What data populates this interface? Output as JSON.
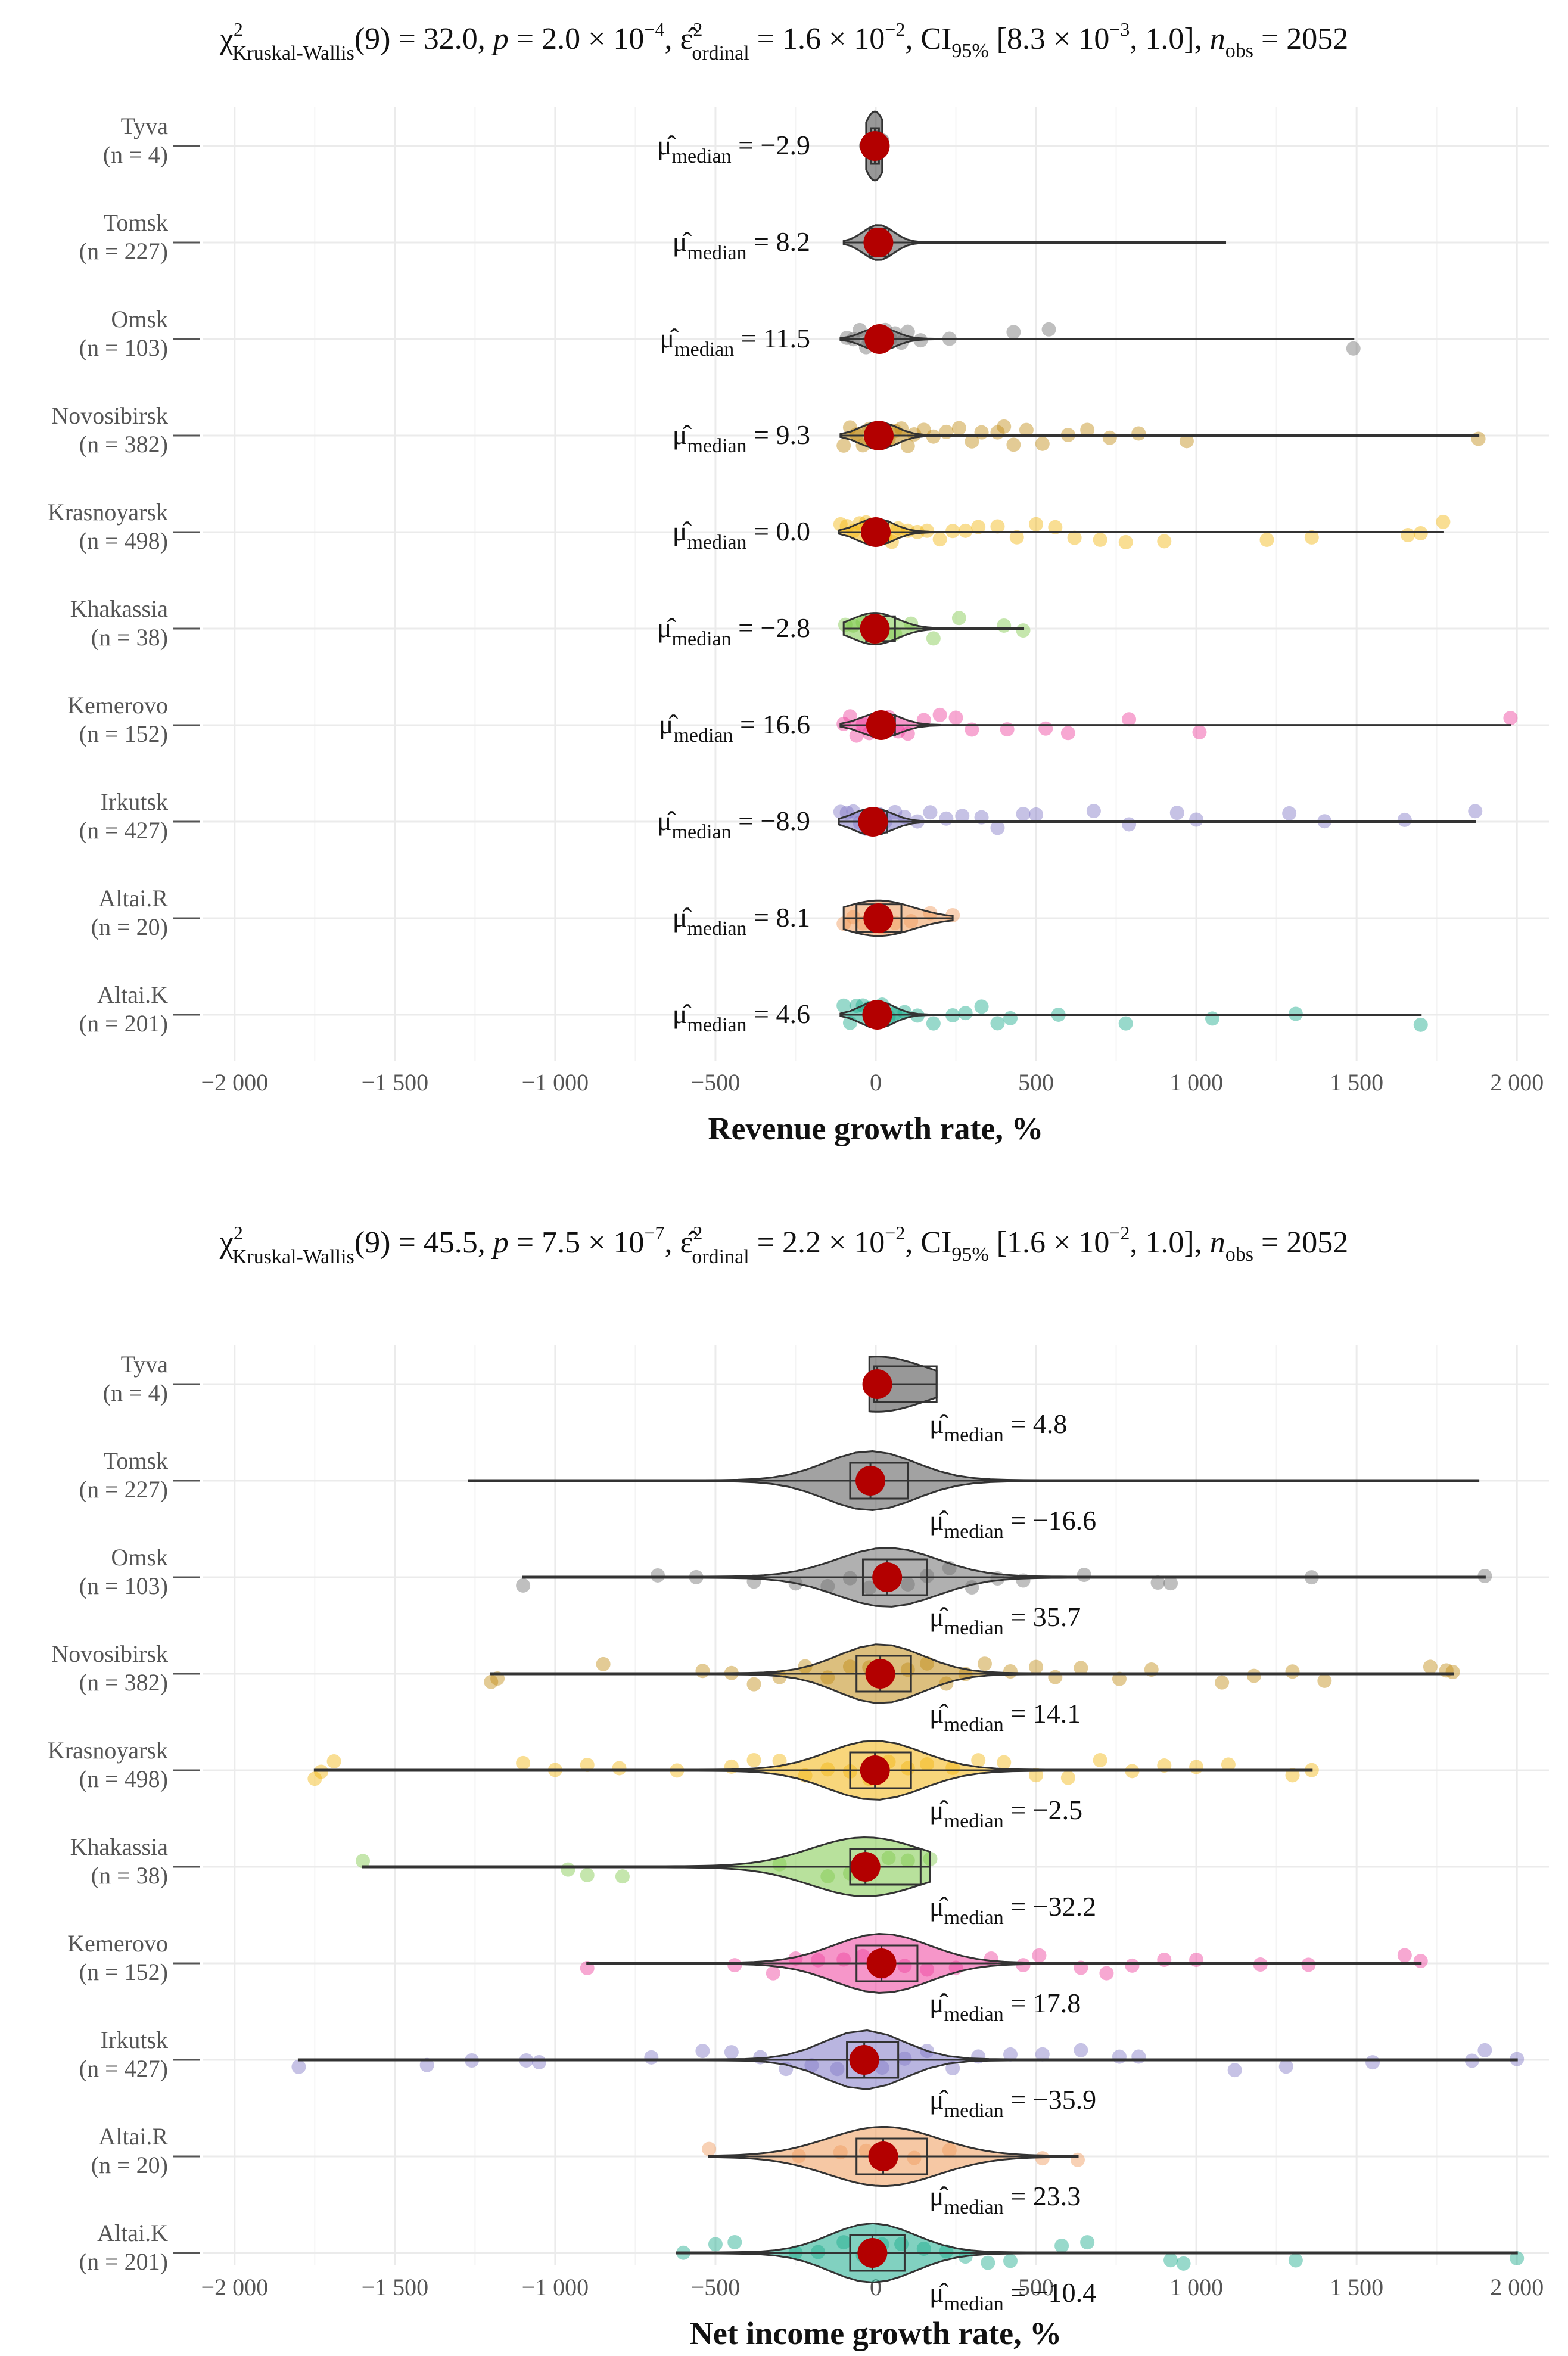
{
  "colors": {
    "grid": "#ebebeb",
    "median_point": "#b30000",
    "violin_stroke": "#333333",
    "Tyva": "#444444",
    "Tomsk": "#555555",
    "Omsk": "#707070",
    "Novosibirsk": "#c08b14",
    "Krasnoyarsk": "#f2b50f",
    "Khakassia": "#7ec84a",
    "Kemerovo": "#ee3f9c",
    "Irkutsk": "#8078c6",
    "Altai.R": "#ef9a5a",
    "Altai.K": "#1aab8c"
  },
  "chart_data": [
    {
      "type": "violin-box-scatter",
      "title": {
        "stat": "χ",
        "stat_sup": "2",
        "stat_sub": "Kruskal-Wallis",
        "df_text": "(9) = 32.0, ",
        "p_symbol": "p",
        "p_text": " = 2.0 × 10",
        "p_exp": "−4",
        "sep1": ", ",
        "eps_symbol": "ε̂",
        "eps_sup": "2",
        "eps_sub": "ordinal",
        "eps_text": " = 1.6 × 10",
        "eps_exp": "−2",
        "ci_text": ", CI",
        "ci_sub": "95%",
        "ci_lo": " [8.3 × 10",
        "ci_lo_exp": "−3",
        "ci_hi": ", 1.0], ",
        "n_symbol": "n",
        "n_sub": "obs",
        "n_text": " = 2052"
      },
      "xlabel": "Revenue growth rate, %",
      "xlim": [
        -2100,
        2100
      ],
      "xticks": [
        -2000,
        -1500,
        -1000,
        -500,
        0,
        500,
        1000,
        1500,
        2000
      ],
      "xtick_labels": [
        "−2 000",
        "−1 500",
        "−1 000",
        "−500",
        "0",
        "500",
        "1 000",
        "1 500",
        "2 000"
      ],
      "median_label_prefix": "μ̂",
      "median_label_sub": "median",
      "median_label_position": "left",
      "groups": [
        {
          "name": "Tyva",
          "n_label": "(n = 4)",
          "median": -2.9,
          "median_label": " = −2.9",
          "q1": -15,
          "q3": 10,
          "min": -30,
          "max": 20,
          "violin_width": 0.35,
          "points": [
            -30,
            -10,
            5,
            20
          ]
        },
        {
          "name": "Tomsk",
          "n_label": "(n = 227)",
          "median": 8.2,
          "median_label": " = 8.2",
          "q1": -20,
          "q3": 40,
          "min": -100,
          "max": 1090,
          "violin_width": 0.18,
          "points": []
        },
        {
          "name": "Omsk",
          "n_label": "(n = 103)",
          "median": 11.5,
          "median_label": " = 11.5",
          "q1": -20,
          "q3": 45,
          "min": -110,
          "max": 1490,
          "violin_width": 0.12,
          "points": [
            -90,
            -70,
            -50,
            -30,
            -20,
            -10,
            0,
            10,
            20,
            30,
            45,
            60,
            80,
            100,
            140,
            230,
            430,
            540,
            1490
          ]
        },
        {
          "name": "Novosibirsk",
          "n_label": "(n = 382)",
          "median": 9.3,
          "median_label": " = 9.3",
          "q1": -25,
          "q3": 45,
          "min": -110,
          "max": 1880,
          "violin_width": 0.14,
          "points": [
            -100,
            -80,
            -60,
            -40,
            -20,
            0,
            20,
            40,
            60,
            80,
            100,
            120,
            150,
            180,
            220,
            260,
            300,
            330,
            380,
            400,
            430,
            470,
            520,
            600,
            660,
            730,
            820,
            970,
            1880
          ]
        },
        {
          "name": "Krasnoyarsk",
          "n_label": "(n = 498)",
          "median": 0.0,
          "median_label": " = 0.0",
          "q1": -30,
          "q3": 40,
          "min": -115,
          "max": 1770,
          "violin_width": 0.14,
          "points": [
            -110,
            -90,
            -70,
            -50,
            -30,
            -10,
            10,
            30,
            50,
            70,
            100,
            130,
            160,
            200,
            240,
            280,
            320,
            380,
            440,
            500,
            560,
            620,
            700,
            780,
            900,
            1220,
            1360,
            1660,
            1700,
            1770
          ]
        },
        {
          "name": "Khakassia",
          "n_label": "(n = 38)",
          "median": -2.8,
          "median_label": " = −2.8",
          "q1": -30,
          "q3": 60,
          "min": -100,
          "max": 460,
          "violin_width": 0.16,
          "points": [
            -95,
            -70,
            -40,
            -10,
            20,
            60,
            110,
            180,
            260,
            400,
            460
          ]
        },
        {
          "name": "Kemerovo",
          "n_label": "(n = 152)",
          "median": 16.6,
          "median_label": " = 16.6",
          "q1": -15,
          "q3": 60,
          "min": -110,
          "max": 1980,
          "violin_width": 0.13,
          "points": [
            -100,
            -80,
            -60,
            -40,
            -20,
            0,
            20,
            40,
            70,
            100,
            150,
            200,
            250,
            300,
            410,
            530,
            600,
            790,
            1010,
            1980
          ]
        },
        {
          "name": "Irkutsk",
          "n_label": "(n = 427)",
          "median": -8.9,
          "median_label": " = −8.9",
          "q1": -40,
          "q3": 35,
          "min": -115,
          "max": 1870,
          "violin_width": 0.14,
          "points": [
            -110,
            -90,
            -70,
            -50,
            -30,
            -10,
            10,
            30,
            60,
            90,
            130,
            170,
            220,
            270,
            330,
            380,
            460,
            500,
            680,
            790,
            940,
            1000,
            1290,
            1400,
            1650,
            1870
          ]
        },
        {
          "name": "Altai.R",
          "n_label": "(n = 20)",
          "median": 8.1,
          "median_label": " = 8.1",
          "q1": -60,
          "q3": 80,
          "min": -100,
          "max": 240,
          "violin_width": 0.18,
          "points": [
            -100,
            -70,
            -40,
            -10,
            20,
            60,
            110,
            170,
            240
          ]
        },
        {
          "name": "Altai.K",
          "n_label": "(n = 201)",
          "median": 4.6,
          "median_label": " = 4.6",
          "q1": -25,
          "q3": 40,
          "min": -110,
          "max": 1700,
          "violin_width": 0.14,
          "points": [
            -100,
            -80,
            -60,
            -40,
            -20,
            0,
            20,
            40,
            60,
            90,
            130,
            180,
            240,
            280,
            330,
            380,
            420,
            570,
            780,
            1050,
            1310,
            1700
          ]
        }
      ]
    },
    {
      "type": "violin-box-scatter",
      "title": {
        "stat": "χ",
        "stat_sup": "2",
        "stat_sub": "Kruskal-Wallis",
        "df_text": "(9) = 45.5, ",
        "p_symbol": "p",
        "p_text": " = 7.5 × 10",
        "p_exp": "−7",
        "sep1": ", ",
        "eps_symbol": "ε̂",
        "eps_sup": "2",
        "eps_sub": "ordinal",
        "eps_text": " = 2.2 × 10",
        "eps_exp": "−2",
        "ci_text": ", CI",
        "ci_sub": "95%",
        "ci_lo": " [1.6 × 10",
        "ci_lo_exp": "−2",
        "ci_hi": ", 1.0], ",
        "n_symbol": "n",
        "n_sub": "obs",
        "n_text": " = 2052"
      },
      "xlabel": "Net income growth rate, %",
      "xlim": [
        -2100,
        2100
      ],
      "xticks": [
        -2000,
        -1500,
        -1000,
        -500,
        0,
        500,
        1000,
        1500,
        2000
      ],
      "xtick_labels": [
        "−2 000",
        "−1 500",
        "−1 000",
        "−500",
        "0",
        "500",
        "1 000",
        "1 500",
        "2 000"
      ],
      "median_label_prefix": "μ̂",
      "median_label_sub": "median",
      "median_label_position": "below",
      "groups": [
        {
          "name": "Tyva",
          "n_label": "(n = 4)",
          "median": 4.8,
          "median_label": " = 4.8",
          "q1": -5,
          "q3": 190,
          "min": -20,
          "max": 190,
          "violin_width": 0.28,
          "points": []
        },
        {
          "name": "Tomsk",
          "n_label": "(n = 227)",
          "median": -16.6,
          "median_label": " = −16.6",
          "q1": -80,
          "q3": 100,
          "min": -1270,
          "max": 1880,
          "violin_width": 0.3,
          "points": []
        },
        {
          "name": "Omsk",
          "n_label": "(n = 103)",
          "median": 35.7,
          "median_label": " = 35.7",
          "q1": -40,
          "q3": 160,
          "min": -1100,
          "max": 1900,
          "violin_width": 0.3,
          "points": [
            -1100,
            -680,
            -560,
            -380,
            -250,
            -150,
            -80,
            -20,
            40,
            100,
            160,
            230,
            300,
            380,
            460,
            650,
            880,
            920,
            1360,
            1900
          ]
        },
        {
          "name": "Novosibirsk",
          "n_label": "(n = 382)",
          "median": 14.1,
          "median_label": " = 14.1",
          "q1": -60,
          "q3": 110,
          "min": -1200,
          "max": 1800,
          "violin_width": 0.3,
          "points": [
            -1200,
            -1180,
            -850,
            -540,
            -450,
            -380,
            -300,
            -220,
            -150,
            -80,
            -20,
            40,
            100,
            160,
            220,
            280,
            340,
            420,
            500,
            560,
            640,
            760,
            860,
            1080,
            1180,
            1300,
            1400,
            1730,
            1780,
            1800
          ]
        },
        {
          "name": "Krasnoyarsk",
          "n_label": "(n = 498)",
          "median": -2.5,
          "median_label": " = −2.5",
          "q1": -80,
          "q3": 110,
          "min": -1750,
          "max": 1360,
          "violin_width": 0.3,
          "points": [
            -1750,
            -1730,
            -1690,
            -1100,
            -1000,
            -900,
            -800,
            -620,
            -450,
            -380,
            -300,
            -220,
            -150,
            -80,
            -20,
            40,
            100,
            160,
            240,
            320,
            400,
            500,
            600,
            700,
            800,
            900,
            1000,
            1100,
            1300,
            1360
          ]
        },
        {
          "name": "Khakassia",
          "n_label": "(n = 38)",
          "median": -32.2,
          "median_label": " = −32.2",
          "q1": -80,
          "q3": 140,
          "min": -1600,
          "max": 170,
          "violin_width": 0.3,
          "points": [
            -1600,
            -960,
            -900,
            -790,
            -300,
            -150,
            -80,
            -20,
            40,
            100,
            170
          ]
        },
        {
          "name": "Kemerovo",
          "n_label": "(n = 152)",
          "median": 17.8,
          "median_label": " = 17.8",
          "q1": -60,
          "q3": 130,
          "min": -900,
          "max": 1700,
          "violin_width": 0.3,
          "points": [
            -900,
            -440,
            -320,
            -250,
            -180,
            -100,
            -40,
            20,
            90,
            160,
            250,
            360,
            460,
            510,
            640,
            720,
            800,
            900,
            1000,
            1200,
            1350,
            1650,
            1700
          ]
        },
        {
          "name": "Irkutsk",
          "n_label": "(n = 427)",
          "median": -35.9,
          "median_label": " = −35.9",
          "q1": -90,
          "q3": 70,
          "min": -1800,
          "max": 2000,
          "violin_width": 0.3,
          "points": [
            -1800,
            -1400,
            -1260,
            -1090,
            -1050,
            -700,
            -540,
            -450,
            -360,
            -280,
            -200,
            -120,
            -50,
            20,
            90,
            160,
            240,
            320,
            420,
            520,
            640,
            760,
            820,
            1120,
            1280,
            1550,
            1860,
            1900,
            2000
          ]
        },
        {
          "name": "Altai.R",
          "n_label": "(n = 20)",
          "median": 23.3,
          "median_label": " = 23.3",
          "q1": -60,
          "q3": 160,
          "min": -520,
          "max": 630,
          "violin_width": 0.3,
          "points": [
            -520,
            -240,
            -110,
            -30,
            40,
            120,
            230,
            520,
            630
          ]
        },
        {
          "name": "Altai.K",
          "n_label": "(n = 201)",
          "median": -10.4,
          "median_label": " = −10.4",
          "q1": -80,
          "q3": 90,
          "min": -620,
          "max": 2000,
          "violin_width": 0.3,
          "points": [
            -600,
            -500,
            -440,
            -250,
            -180,
            -100,
            -40,
            20,
            80,
            150,
            220,
            280,
            350,
            420,
            580,
            660,
            920,
            960,
            1310,
            2000
          ]
        }
      ]
    }
  ]
}
